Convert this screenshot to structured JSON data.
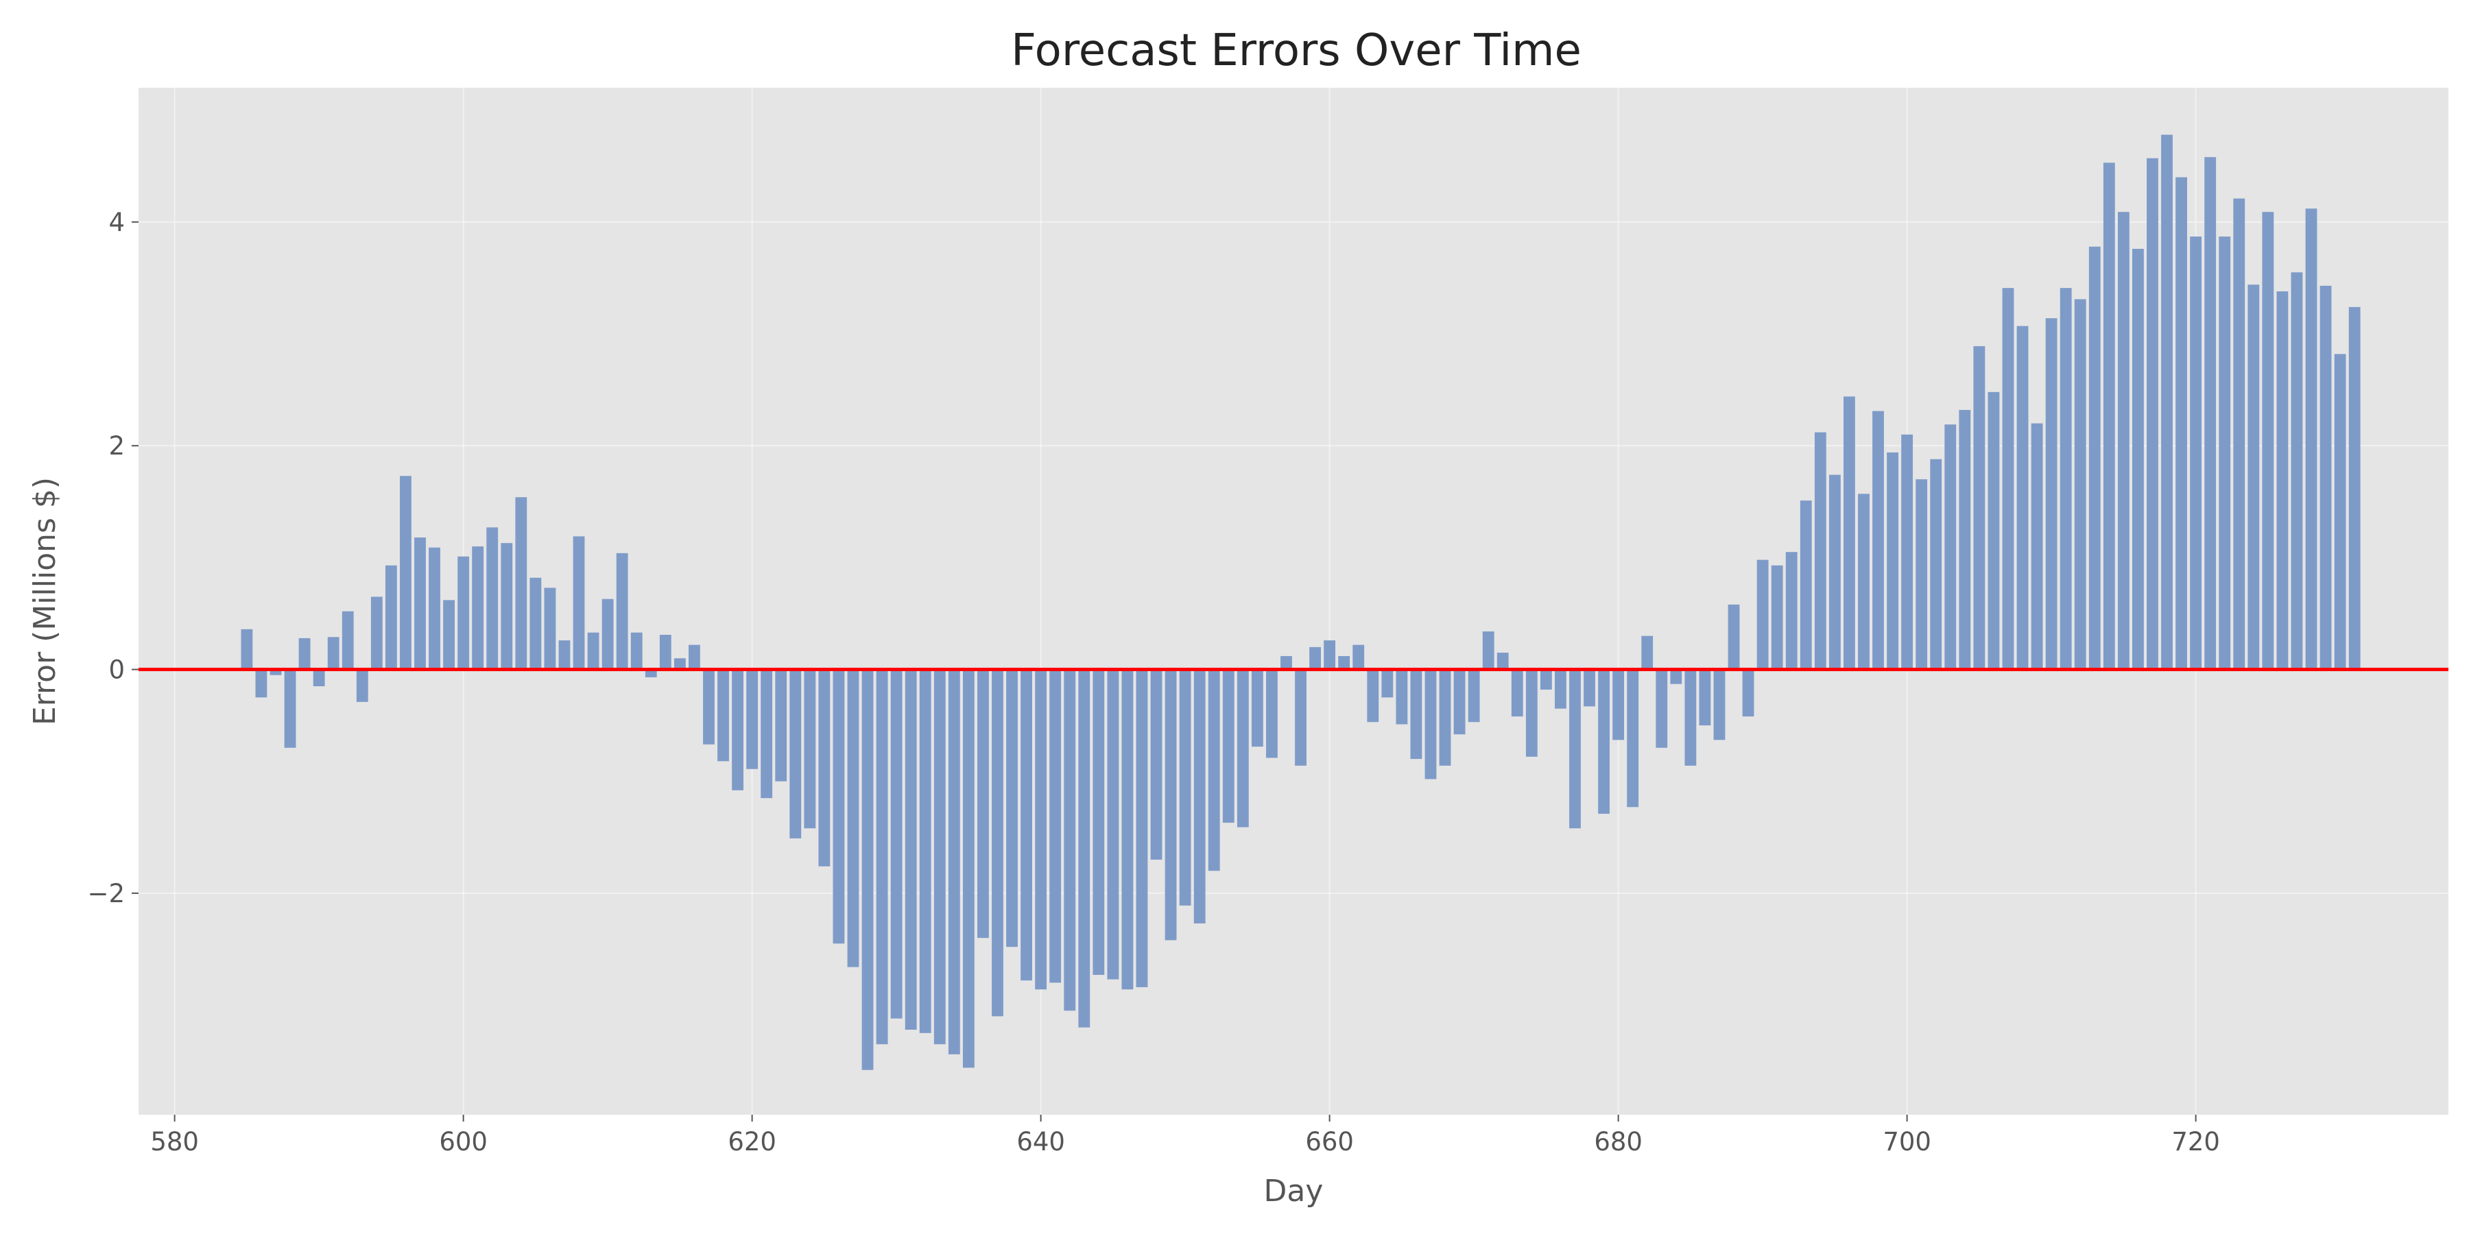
{
  "chart_data": {
    "type": "bar",
    "title": "Forecast Errors Over Time",
    "xlabel": "Day",
    "ylabel": "Error (Millions $)",
    "xlim": [
      577.5,
      737.5
    ],
    "ylim": [
      -3.98,
      5.2
    ],
    "xticks": [
      580,
      600,
      620,
      640,
      660,
      680,
      700,
      720
    ],
    "yticks": [
      -2,
      0,
      2,
      4
    ],
    "ytick_labels": [
      "−2",
      "0",
      "2",
      "4"
    ],
    "bar_color": "#7e9bc8",
    "reference_line": {
      "y": 0,
      "color": "#ff0000"
    },
    "grid": true,
    "plot_background": "#e5e5e5",
    "x": [
      585,
      586,
      587,
      588,
      589,
      590,
      591,
      592,
      593,
      594,
      595,
      596,
      597,
      598,
      599,
      600,
      601,
      602,
      603,
      604,
      605,
      606,
      607,
      608,
      609,
      610,
      611,
      612,
      613,
      614,
      615,
      616,
      617,
      618,
      619,
      620,
      621,
      622,
      623,
      624,
      625,
      626,
      627,
      628,
      629,
      630,
      631,
      632,
      633,
      634,
      635,
      636,
      637,
      638,
      639,
      640,
      641,
      642,
      643,
      644,
      645,
      646,
      647,
      648,
      649,
      650,
      651,
      652,
      653,
      654,
      655,
      656,
      657,
      658,
      659,
      660,
      661,
      662,
      663,
      664,
      665,
      666,
      667,
      668,
      669,
      670,
      671,
      672,
      673,
      674,
      675,
      676,
      677,
      678,
      679,
      680,
      681,
      682,
      683,
      684,
      685,
      686,
      687,
      688,
      689,
      690,
      691,
      692,
      693,
      694,
      695,
      696,
      697,
      698,
      699,
      700,
      701,
      702,
      703,
      704,
      705,
      706,
      707,
      708,
      709,
      710,
      711,
      712,
      713,
      714,
      715,
      716,
      717,
      718,
      719,
      720,
      721,
      722,
      723,
      724,
      725,
      726,
      727,
      728,
      729,
      730,
      731
    ],
    "values": [
      0.36,
      -0.25,
      -0.05,
      -0.7,
      0.28,
      -0.15,
      0.29,
      0.52,
      -0.29,
      0.65,
      0.93,
      1.73,
      1.18,
      1.09,
      0.62,
      1.01,
      1.1,
      1.27,
      1.13,
      1.54,
      0.82,
      0.73,
      0.26,
      1.19,
      0.33,
      0.63,
      1.04,
      0.33,
      -0.07,
      0.31,
      0.1,
      0.22,
      -0.67,
      -0.82,
      -1.08,
      -0.89,
      -1.15,
      -1.0,
      -1.51,
      -1.42,
      -1.76,
      -2.45,
      -2.66,
      -3.58,
      -3.35,
      -3.12,
      -3.22,
      -3.25,
      -3.35,
      -3.44,
      -3.56,
      -2.4,
      -3.1,
      -2.48,
      -2.78,
      -2.86,
      -2.8,
      -3.05,
      -3.2,
      -2.73,
      -2.77,
      -2.86,
      -2.84,
      -1.7,
      -2.42,
      -2.11,
      -2.27,
      -1.8,
      -1.37,
      -1.41,
      -0.69,
      -0.79,
      0.12,
      -0.86,
      0.2,
      0.26,
      0.12,
      0.22,
      -0.47,
      -0.25,
      -0.49,
      -0.8,
      -0.98,
      -0.86,
      -0.58,
      -0.47,
      0.34,
      0.15,
      -0.42,
      -0.78,
      -0.18,
      -0.35,
      -1.42,
      -0.33,
      -1.29,
      -0.63,
      -1.23,
      0.3,
      -0.7,
      -0.13,
      -0.86,
      -0.5,
      -0.63,
      0.58,
      -0.42,
      0.98,
      0.93,
      1.05,
      1.51,
      2.12,
      1.74,
      2.44,
      1.57,
      2.31,
      1.94,
      2.1,
      1.7,
      1.88,
      2.19,
      2.32,
      2.89,
      2.48,
      3.41,
      3.07,
      2.2,
      3.14,
      3.41,
      3.31,
      3.78,
      4.53,
      4.09,
      3.76,
      4.57,
      4.78,
      4.4,
      3.87,
      4.58,
      3.87,
      4.21,
      3.44,
      4.09,
      3.38,
      3.55,
      4.12,
      3.43,
      2.82,
      3.24
    ]
  }
}
